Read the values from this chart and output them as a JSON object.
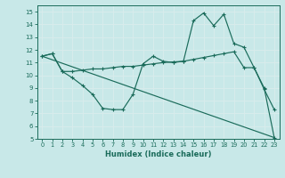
{
  "xlabel": "Humidex (Indice chaleur)",
  "bg_color": "#c8e8e8",
  "grid_color": "#b0d4d4",
  "line_color": "#1a6b5a",
  "xlim": [
    -0.5,
    23.5
  ],
  "ylim": [
    5,
    15.5
  ],
  "xticks": [
    0,
    1,
    2,
    3,
    4,
    5,
    6,
    7,
    8,
    9,
    10,
    11,
    12,
    13,
    14,
    15,
    16,
    17,
    18,
    19,
    20,
    21,
    22,
    23
  ],
  "yticks": [
    5,
    6,
    7,
    8,
    9,
    10,
    11,
    12,
    13,
    14,
    15
  ],
  "line1_x": [
    0,
    1,
    2,
    3,
    4,
    5,
    6,
    7,
    8,
    9,
    10,
    11,
    12,
    13,
    14,
    15,
    16,
    17,
    18,
    19,
    20,
    21,
    22,
    23
  ],
  "line1_y": [
    11.5,
    11.7,
    10.3,
    9.8,
    9.2,
    8.5,
    7.4,
    7.3,
    7.3,
    8.5,
    10.9,
    11.5,
    11.1,
    11.0,
    11.1,
    14.3,
    14.9,
    13.9,
    14.8,
    12.5,
    12.2,
    10.6,
    8.9,
    7.3
  ],
  "line2_x": [
    0,
    1,
    2,
    3,
    4,
    5,
    6,
    7,
    8,
    9,
    10,
    11,
    12,
    13,
    14,
    15,
    16,
    17,
    18,
    19,
    20,
    21,
    22,
    23
  ],
  "line2_y": [
    11.5,
    11.7,
    10.3,
    10.3,
    10.4,
    10.5,
    10.5,
    10.6,
    10.7,
    10.7,
    10.8,
    10.9,
    11.0,
    11.05,
    11.1,
    11.25,
    11.4,
    11.55,
    11.7,
    11.85,
    10.6,
    10.6,
    9.0,
    5.1
  ],
  "line3_x": [
    0,
    23
  ],
  "line3_y": [
    11.5,
    5.1
  ]
}
